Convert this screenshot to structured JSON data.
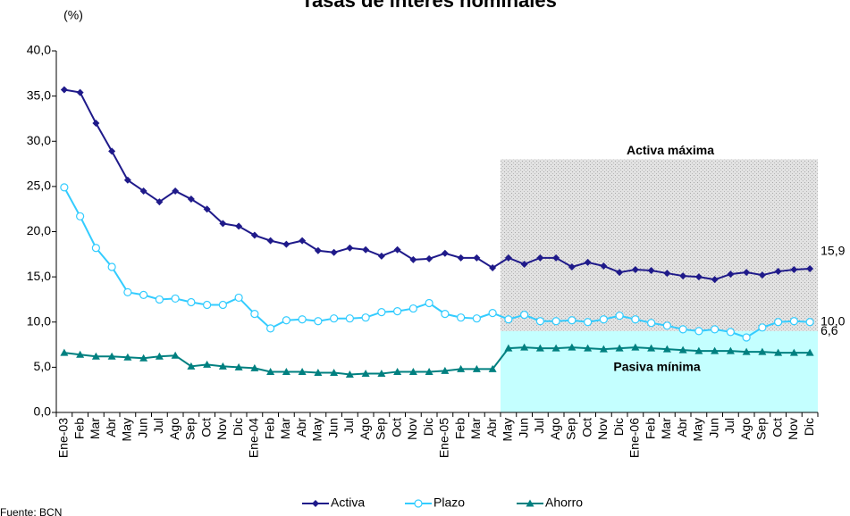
{
  "chart_data": {
    "type": "line",
    "title": "Tasas de interés nominales",
    "y_label": "(%)",
    "source": "Fuente: BCN",
    "categories": [
      "Ene-03",
      "Feb",
      "Mar",
      "Abr",
      "May",
      "Jun",
      "Jul",
      "Ago",
      "Sep",
      "Oct",
      "Nov",
      "Dic",
      "Ene-04",
      "Feb",
      "Mar",
      "Abr",
      "May",
      "Jun",
      "Jul",
      "Ago",
      "Sep",
      "Oct",
      "Nov",
      "Dic",
      "Ene-05",
      "Feb",
      "Mar",
      "Abr",
      "May",
      "Jun",
      "Jul",
      "Ago",
      "Sep",
      "Oct",
      "Nov",
      "Dic",
      "Ene-06",
      "Feb",
      "Mar",
      "Abr",
      "May",
      "Jun",
      "Jul",
      "Ago",
      "Sep",
      "Oct",
      "Nov",
      "Dic"
    ],
    "series": [
      {
        "name": "Activa",
        "color": "#1f1a8a",
        "marker": "diamond",
        "values": [
          35.7,
          35.4,
          32.0,
          28.9,
          25.7,
          24.5,
          23.3,
          24.5,
          23.6,
          22.5,
          20.9,
          20.6,
          19.6,
          19.0,
          18.6,
          19.0,
          17.9,
          17.7,
          18.2,
          18.0,
          17.3,
          18.0,
          16.9,
          17.0,
          17.6,
          17.1,
          17.1,
          16.0,
          17.1,
          16.4,
          17.1,
          17.1,
          16.1,
          16.6,
          16.2,
          15.5,
          15.8,
          15.7,
          15.4,
          15.1,
          15.0,
          14.7,
          15.3,
          15.5,
          15.2,
          15.6,
          15.8,
          15.9
        ],
        "value_labels": [
          null,
          null,
          null,
          null,
          null,
          null,
          null,
          null,
          null,
          null,
          null,
          null,
          null,
          null,
          null,
          null,
          null,
          null,
          null,
          null,
          null,
          null,
          null,
          null,
          null,
          null,
          null,
          null,
          null,
          null,
          null,
          null,
          null,
          null,
          null,
          null,
          null,
          null,
          null,
          null,
          null,
          null,
          null,
          null,
          null,
          null,
          null,
          "15,9"
        ]
      },
      {
        "name": "Plazo",
        "color": "#33ccff",
        "marker": "circle",
        "values": [
          24.9,
          21.7,
          18.2,
          16.1,
          13.3,
          13.0,
          12.5,
          12.6,
          12.2,
          11.9,
          11.9,
          12.7,
          10.9,
          9.3,
          10.2,
          10.3,
          10.1,
          10.4,
          10.4,
          10.5,
          11.1,
          11.2,
          11.5,
          12.1,
          10.9,
          10.5,
          10.4,
          11.0,
          10.3,
          10.8,
          10.1,
          10.1,
          10.2,
          10.0,
          10.3,
          10.7,
          10.3,
          9.9,
          9.6,
          9.2,
          9.0,
          9.2,
          8.9,
          8.3,
          9.4,
          10.0,
          10.1,
          10.0
        ],
        "value_labels": [
          null,
          null,
          null,
          null,
          null,
          null,
          null,
          null,
          null,
          null,
          null,
          null,
          null,
          null,
          null,
          null,
          null,
          null,
          null,
          null,
          null,
          null,
          null,
          null,
          null,
          null,
          null,
          null,
          null,
          null,
          null,
          null,
          null,
          null,
          null,
          null,
          null,
          null,
          null,
          null,
          null,
          null,
          null,
          null,
          null,
          null,
          null,
          "10,0"
        ]
      },
      {
        "name": "Ahorro",
        "color": "#008080",
        "marker": "triangle",
        "values": [
          6.6,
          6.4,
          6.2,
          6.2,
          6.1,
          6.0,
          6.2,
          6.3,
          5.1,
          5.3,
          5.1,
          5.0,
          4.9,
          4.5,
          4.5,
          4.5,
          4.4,
          4.4,
          4.2,
          4.3,
          4.3,
          4.5,
          4.5,
          4.5,
          4.6,
          4.8,
          4.8,
          4.8,
          7.1,
          7.2,
          7.1,
          7.1,
          7.2,
          7.1,
          7.0,
          7.1,
          7.2,
          7.1,
          7.0,
          6.9,
          6.8,
          6.8,
          6.8,
          6.7,
          6.7,
          6.6,
          6.6,
          6.6
        ],
        "value_labels": [
          null,
          null,
          null,
          null,
          null,
          null,
          null,
          null,
          null,
          null,
          null,
          null,
          null,
          null,
          null,
          null,
          null,
          null,
          null,
          null,
          null,
          null,
          null,
          null,
          null,
          null,
          null,
          null,
          null,
          null,
          null,
          null,
          null,
          null,
          null,
          null,
          null,
          null,
          null,
          null,
          null,
          null,
          null,
          null,
          null,
          null,
          null,
          "6,6"
        ]
      }
    ],
    "shaded_regions": [
      {
        "label": "Activa máxima",
        "ylim": [
          9,
          28
        ],
        "color": "#d9d9d9"
      },
      {
        "label": "Pasiva mínima",
        "ylim": [
          0,
          9
        ],
        "color": "#c4ffff"
      }
    ],
    "ylim": [
      0,
      40
    ],
    "yticks": [
      {
        "value": 0,
        "label": "0,0"
      },
      {
        "value": 5,
        "label": "5,0"
      },
      {
        "value": 10,
        "label": "10,0"
      },
      {
        "value": 15,
        "label": "15,0"
      },
      {
        "value": 20,
        "label": "20,0"
      },
      {
        "value": 25,
        "label": "25,0"
      },
      {
        "value": 30,
        "label": "30,0"
      },
      {
        "value": 35,
        "label": "35,0"
      },
      {
        "value": 40,
        "label": "40,0"
      }
    ],
    "legend": "bottom"
  }
}
